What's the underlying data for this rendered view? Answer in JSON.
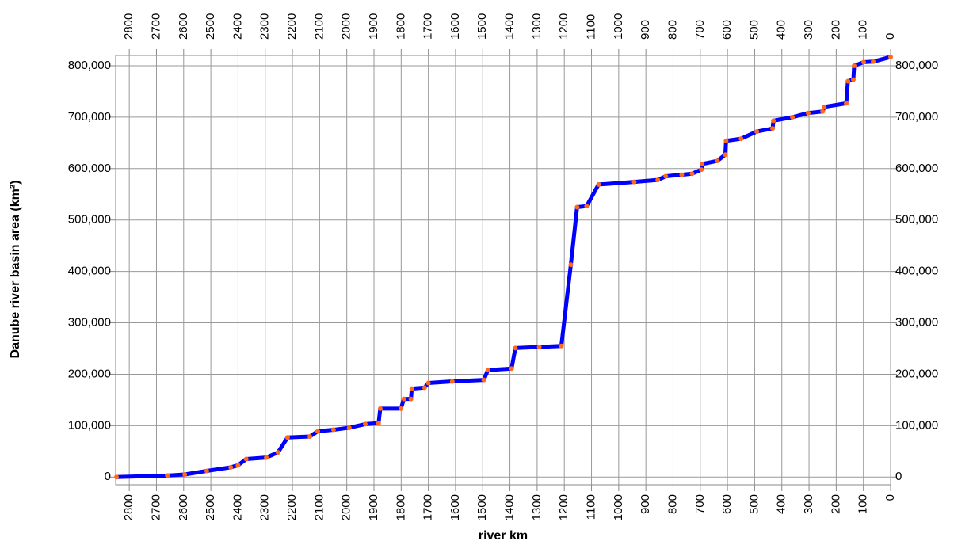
{
  "chart_data": {
    "type": "line",
    "xlabel": "river km",
    "ylabel": "Danube river basin area (km²)",
    "x": [
      2847,
      2660,
      2596,
      2515,
      2427,
      2400,
      2370,
      2296,
      2253,
      2218,
      2136,
      2107,
      2049,
      1991,
      1932,
      1883,
      1877,
      1801,
      1790,
      1764,
      1761,
      1714,
      1700,
      1612,
      1496,
      1481,
      1394,
      1380,
      1292,
      1211,
      1176,
      1153,
      1118,
      1074,
      943,
      856,
      827,
      768,
      730,
      696,
      693,
      637,
      608,
      605,
      550,
      492,
      434,
      431,
      361,
      303,
      250,
      244,
      163,
      157,
      137,
      134,
      99,
      64,
      0
    ],
    "values": [
      0,
      3000,
      5000,
      12000,
      19000,
      23000,
      35000,
      38000,
      48000,
      77000,
      79000,
      89000,
      92000,
      96000,
      103000,
      105000,
      133000,
      133000,
      152000,
      152000,
      172000,
      174000,
      183000,
      186000,
      189000,
      208000,
      211000,
      251000,
      253000,
      255000,
      413000,
      525000,
      527000,
      569000,
      574000,
      578000,
      585000,
      588000,
      590000,
      598000,
      609000,
      615000,
      627000,
      654000,
      658000,
      672000,
      678000,
      693000,
      700000,
      708000,
      711000,
      720000,
      727000,
      770000,
      773000,
      800000,
      807000,
      808000,
      817000
    ],
    "color": "#0000ff",
    "marker_color": "#ff6a1a",
    "xlim": [
      2850,
      0
    ],
    "xticks": [
      2800,
      2700,
      2600,
      2500,
      2400,
      2300,
      2200,
      2100,
      2000,
      1900,
      1800,
      1700,
      1600,
      1500,
      1400,
      1300,
      1200,
      1100,
      1000,
      900,
      800,
      700,
      600,
      500,
      400,
      300,
      200,
      100,
      0
    ],
    "ylim": [
      -15000,
      820000
    ],
    "yticks": [
      0,
      {
        "value": 100000,
        "label": "100,000"
      },
      {
        "value": 200000,
        "label": "200,000"
      },
      {
        "value": 300000,
        "label": "300,000"
      },
      {
        "value": 400000,
        "label": "400,000"
      },
      {
        "value": 500000,
        "label": "500,000"
      },
      {
        "value": 600000,
        "label": "600,000"
      },
      {
        "value": 700000,
        "label": "700,000"
      },
      {
        "value": 800000,
        "label": "800,000"
      }
    ],
    "grid": true
  }
}
